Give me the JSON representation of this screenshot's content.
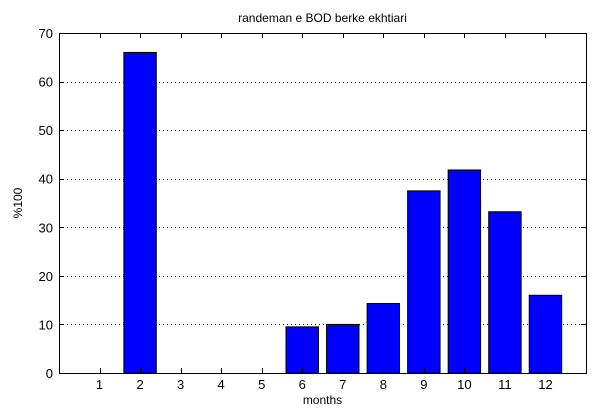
{
  "chart_data": {
    "type": "bar",
    "title": "randeman e BOD berke ekhtiari",
    "xlabel": "months",
    "ylabel": "%100",
    "categories": [
      "1",
      "2",
      "3",
      "4",
      "5",
      "6",
      "7",
      "8",
      "9",
      "10",
      "11",
      "12"
    ],
    "values": [
      0,
      66,
      0,
      0,
      0,
      9.5,
      10,
      14.3,
      37.5,
      41.8,
      33.2,
      16
    ],
    "ylim": [
      0,
      70
    ],
    "xlim": [
      0,
      13
    ],
    "yticks": [
      0,
      10,
      20,
      30,
      40,
      50,
      60,
      70
    ],
    "grid": "y-dotted",
    "colors": {
      "bar": "#0000ff",
      "bar_edge": "#000000",
      "grid": "#000000"
    }
  }
}
